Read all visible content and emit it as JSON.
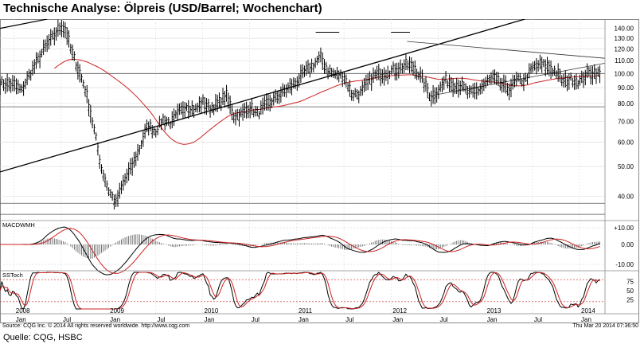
{
  "header": {
    "title": "Technische Analyse: Ölpreis (USD/Barrel; Wochenchart)"
  },
  "footer": {
    "source": "Quelle: CQG, HSBC",
    "copyright": "Source: CQG Inc. © 2014 All rights reserved worldwide. http://www.cqg.com",
    "timestamp": "Thu Mar 20 2014 07:36:50"
  },
  "chart_data": {
    "type": "candlestick",
    "price_axis": {
      "scale": "log",
      "ticks": [
        {
          "value": 40,
          "label": "40.00"
        },
        {
          "value": 50,
          "label": "50.00"
        },
        {
          "value": 60,
          "label": "60.00"
        },
        {
          "value": 70,
          "label": "70.00"
        },
        {
          "value": 80,
          "label": "80.00"
        },
        {
          "value": 90,
          "label": "90.00"
        },
        {
          "value": 100,
          "label": "100.00"
        },
        {
          "value": 110,
          "label": "110.00"
        },
        {
          "value": 120,
          "label": "120.00"
        },
        {
          "value": 130,
          "label": "130.00"
        },
        {
          "value": 140,
          "label": "140.00"
        }
      ],
      "range": [
        34,
        150
      ]
    },
    "time_axis": {
      "months": [
        "Jan",
        "Jul",
        "Jan",
        "Jul",
        "Jan",
        "Jul",
        "Jan",
        "Jul",
        "Jan",
        "Jul",
        "Jan",
        "Jul",
        "Jan"
      ],
      "years": [
        "2008",
        "2009",
        "2010",
        "2011",
        "2012",
        "2013",
        "2014"
      ]
    },
    "price_path": [
      [
        2007.85,
        93
      ],
      [
        2008.0,
        92
      ],
      [
        2008.08,
        88
      ],
      [
        2008.17,
        100
      ],
      [
        2008.25,
        110
      ],
      [
        2008.33,
        122
      ],
      [
        2008.42,
        132
      ],
      [
        2008.5,
        143
      ],
      [
        2008.55,
        138
      ],
      [
        2008.6,
        120
      ],
      [
        2008.67,
        105
      ],
      [
        2008.75,
        90
      ],
      [
        2008.83,
        70
      ],
      [
        2008.92,
        50
      ],
      [
        2009.0,
        42
      ],
      [
        2009.08,
        38
      ],
      [
        2009.17,
        45
      ],
      [
        2009.25,
        50
      ],
      [
        2009.33,
        57
      ],
      [
        2009.42,
        68
      ],
      [
        2009.5,
        65
      ],
      [
        2009.58,
        71
      ],
      [
        2009.67,
        69
      ],
      [
        2009.75,
        75
      ],
      [
        2009.83,
        79
      ],
      [
        2009.92,
        76
      ],
      [
        2010.0,
        81
      ],
      [
        2010.08,
        77
      ],
      [
        2010.17,
        80
      ],
      [
        2010.25,
        85
      ],
      [
        2010.33,
        73
      ],
      [
        2010.42,
        74
      ],
      [
        2010.5,
        78
      ],
      [
        2010.58,
        74
      ],
      [
        2010.67,
        79
      ],
      [
        2010.75,
        82
      ],
      [
        2010.83,
        86
      ],
      [
        2010.92,
        90
      ],
      [
        2011.0,
        94
      ],
      [
        2011.08,
        101
      ],
      [
        2011.17,
        106
      ],
      [
        2011.25,
        113
      ],
      [
        2011.33,
        102
      ],
      [
        2011.42,
        99
      ],
      [
        2011.5,
        98
      ],
      [
        2011.58,
        86
      ],
      [
        2011.67,
        86
      ],
      [
        2011.75,
        93
      ],
      [
        2011.83,
        99
      ],
      [
        2011.92,
        100
      ],
      [
        2012.0,
        102
      ],
      [
        2012.08,
        104
      ],
      [
        2012.17,
        107
      ],
      [
        2012.25,
        104
      ],
      [
        2012.33,
        96
      ],
      [
        2012.42,
        84
      ],
      [
        2012.5,
        88
      ],
      [
        2012.58,
        95
      ],
      [
        2012.67,
        92
      ],
      [
        2012.75,
        91
      ],
      [
        2012.83,
        86
      ],
      [
        2012.92,
        88
      ],
      [
        2013.0,
        93
      ],
      [
        2013.08,
        97
      ],
      [
        2013.17,
        92
      ],
      [
        2013.25,
        89
      ],
      [
        2013.33,
        95
      ],
      [
        2013.42,
        95
      ],
      [
        2013.5,
        104
      ],
      [
        2013.58,
        107
      ],
      [
        2013.67,
        105
      ],
      [
        2013.75,
        101
      ],
      [
        2013.83,
        94
      ],
      [
        2013.92,
        96
      ],
      [
        2014.0,
        94
      ],
      [
        2014.08,
        100
      ],
      [
        2014.17,
        101
      ],
      [
        2014.22,
        99
      ]
    ],
    "moving_average": "long-term",
    "reference_levels": [
      100.0,
      78.0,
      38.0,
      35.0
    ],
    "indicators": [
      {
        "name": "MACDWMH",
        "ticks": [
          "+10.00",
          "0.00",
          "-10.00"
        ]
      },
      {
        "name": "SSToch",
        "ticks": [
          "75",
          "50",
          "25"
        ]
      }
    ]
  },
  "colors": {
    "candle": "#000000",
    "moving_average": "#cc2222",
    "trendline": "#000000",
    "reference_level": "#555555",
    "macd_line": "#000000",
    "macd_signal": "#cc2222",
    "stoch_k": "#000000",
    "stoch_d": "#cc2222",
    "dotted_level": "#cc2222"
  }
}
